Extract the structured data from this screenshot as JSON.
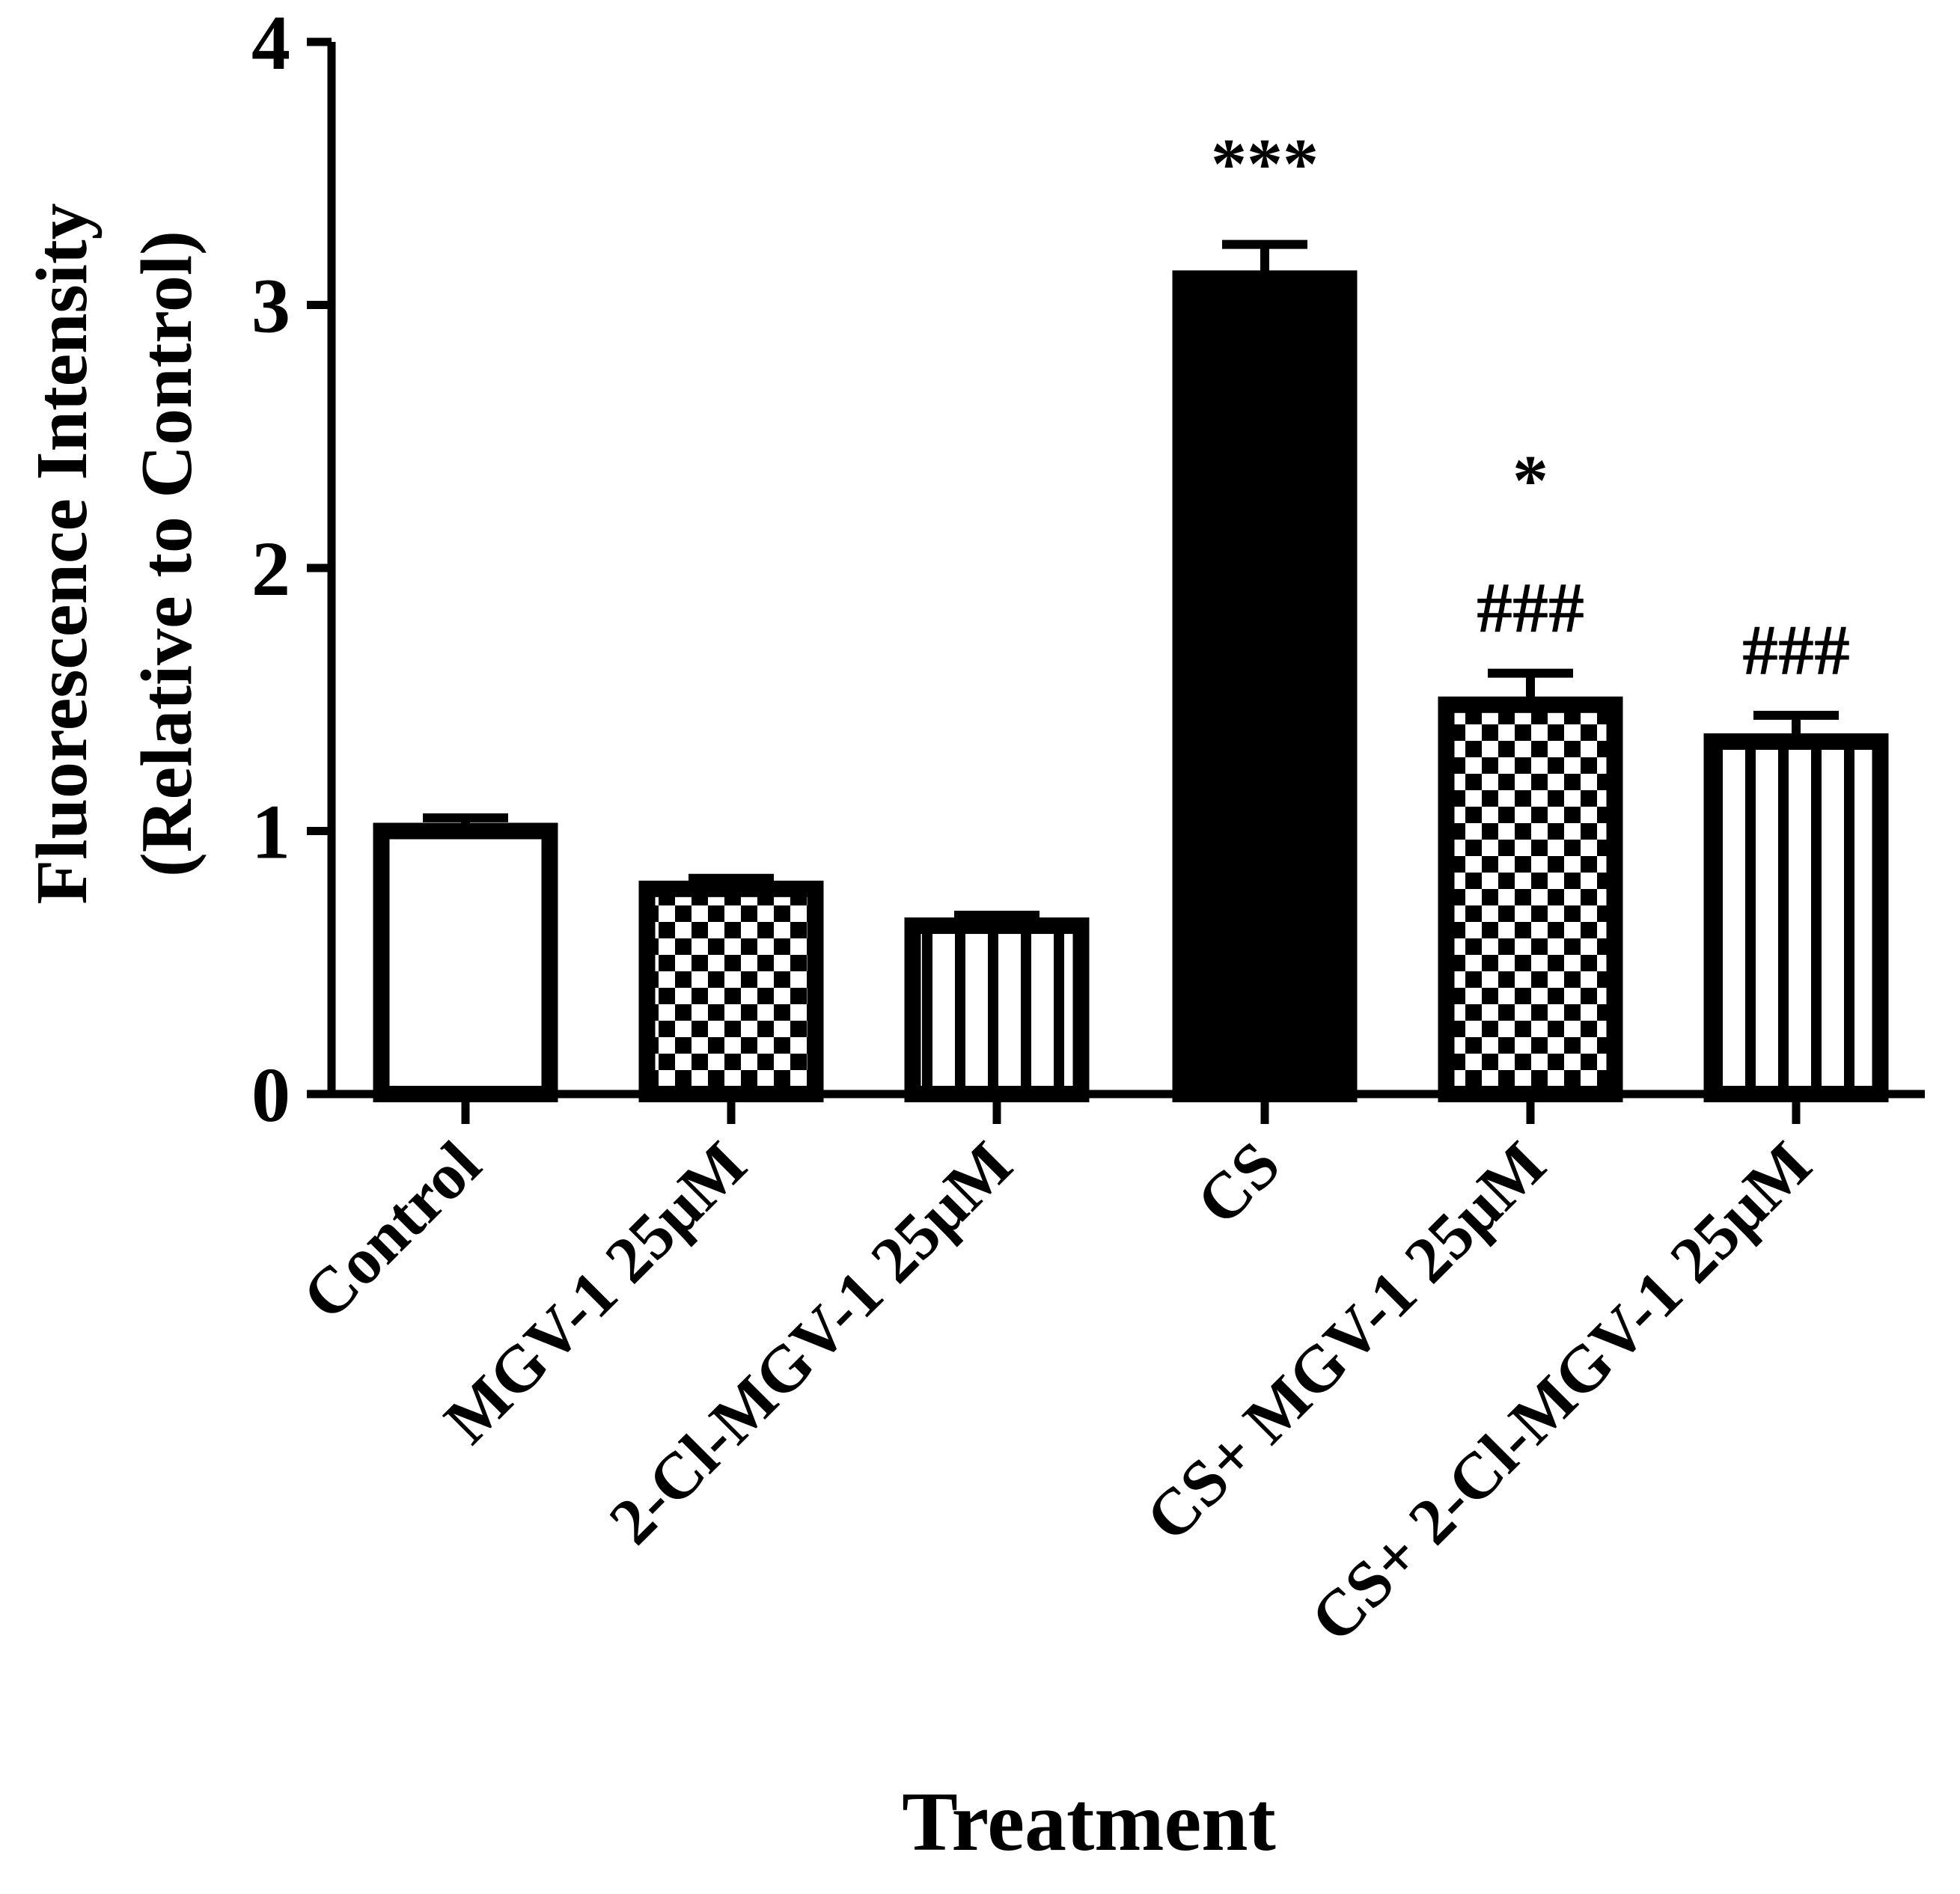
{
  "chart_data": {
    "type": "bar",
    "title": "",
    "ylabel_line1": "Fluorescence Intensity",
    "ylabel_line2": "(Relative to Control)",
    "xlabel": "Treatment",
    "ylim": [
      0,
      4
    ],
    "yticks": [
      0,
      1,
      2,
      3,
      4
    ],
    "ytick_labels": [
      "0",
      "1",
      "2",
      "3",
      "4"
    ],
    "categories": [
      "Control",
      "MGV-1 25µM",
      "2-Cl-MGV-1 25µM",
      "CS",
      "CS+ MGV-1 25µM",
      "CS+ 2-Cl-MGV-1 25µM"
    ],
    "values": [
      1.0,
      0.78,
      0.64,
      3.1,
      1.48,
      1.34
    ],
    "errors": [
      0.05,
      0.04,
      0.04,
      0.13,
      0.12,
      0.1
    ],
    "fills": [
      "white",
      "checker",
      "stripes",
      "solid",
      "checker",
      "stripes"
    ],
    "annotations": [
      {
        "index": 3,
        "lines": [
          "***"
        ]
      },
      {
        "index": 4,
        "lines": [
          "*",
          "###"
        ]
      },
      {
        "index": 5,
        "lines": [
          "###"
        ]
      }
    ],
    "colors": {
      "ink": "#000000",
      "paper": "#ffffff"
    }
  }
}
